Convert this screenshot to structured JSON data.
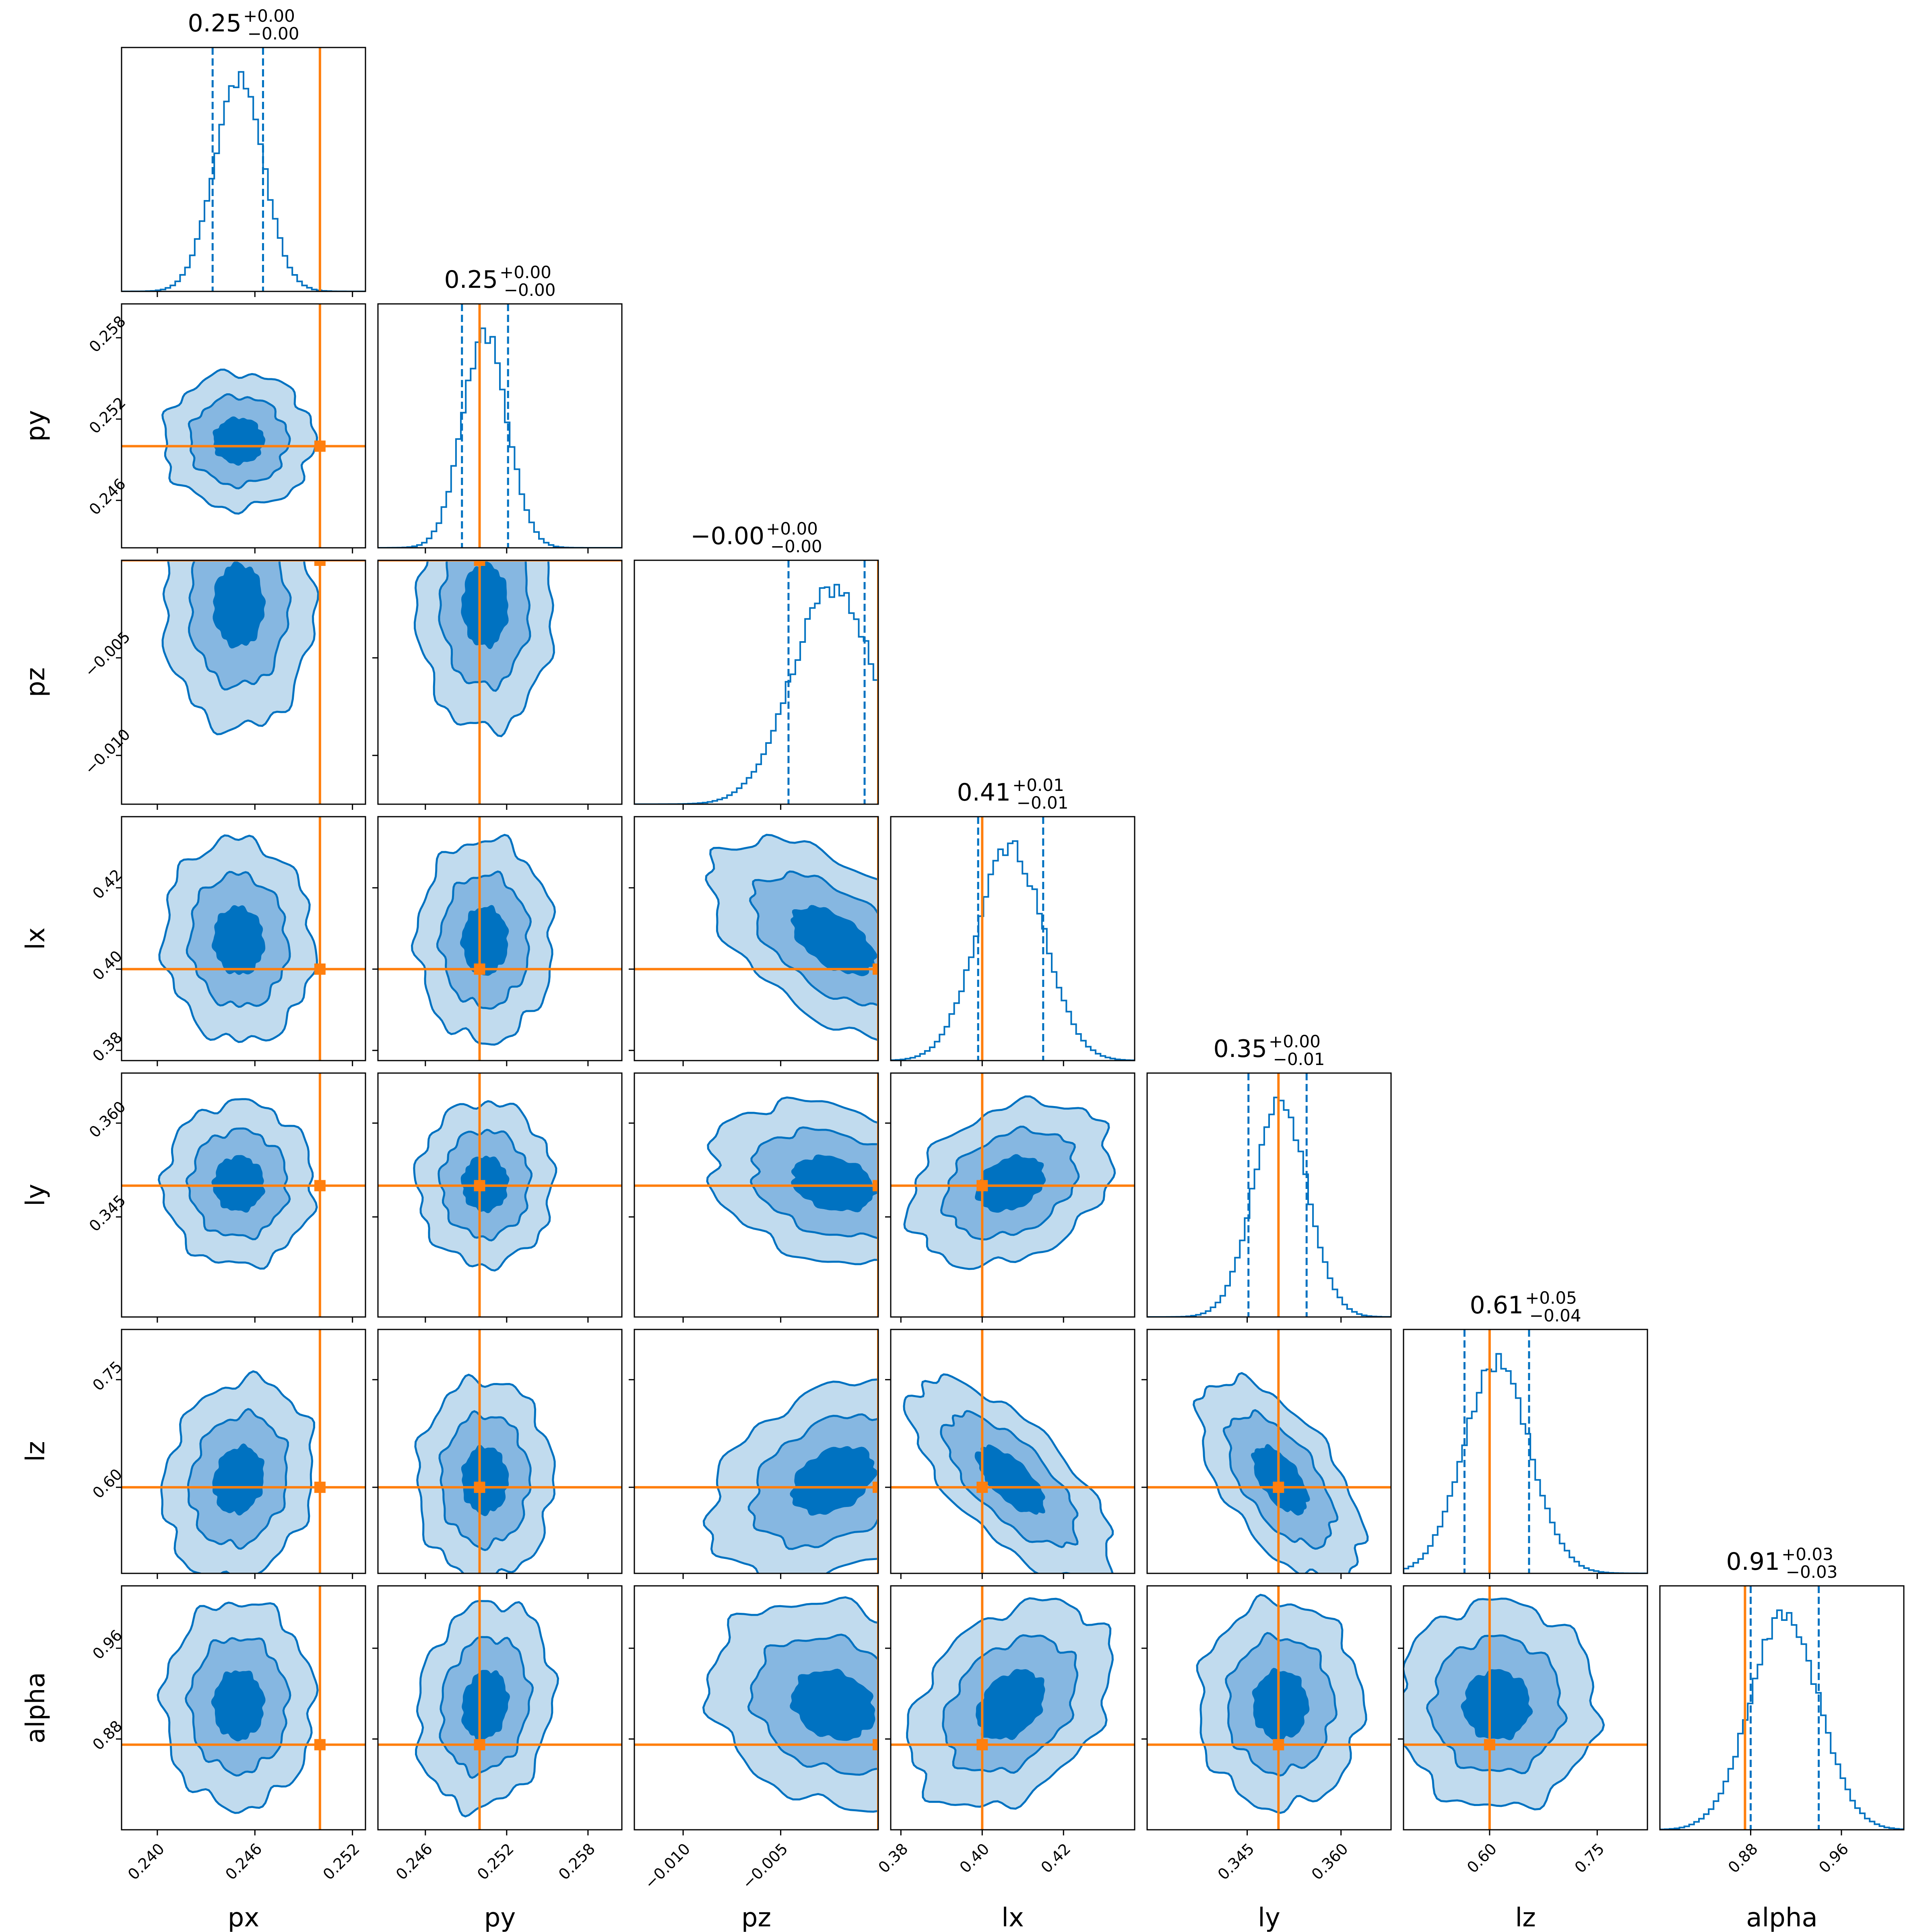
{
  "figure": {
    "type": "corner-plot"
  },
  "chart_data": {
    "type": "corner",
    "parameters": [
      {
        "name": "px",
        "label": "px",
        "title_value": "0.25",
        "title_plus": "+0.00",
        "title_minus": "−0.00",
        "truth": 0.25,
        "mean": 0.245,
        "sd": 0.00152,
        "q_lo": 0.2434,
        "q_hi": 0.2465,
        "range": [
          0.2378,
          0.2528
        ],
        "ticks": [
          {
            "v": 0.24,
            "t": "0.240"
          },
          {
            "v": 0.246,
            "t": "0.246"
          },
          {
            "v": 0.252,
            "t": "0.252"
          }
        ]
      },
      {
        "name": "py",
        "label": "py",
        "title_value": "0.25",
        "title_plus": "+0.00",
        "title_minus": "−0.00",
        "truth": 0.25,
        "mean": 0.2504,
        "sd": 0.00165,
        "q_lo": 0.2487,
        "q_hi": 0.2521,
        "range": [
          0.2425,
          0.2605
        ],
        "ticks": [
          {
            "v": 0.246,
            "t": "0.246"
          },
          {
            "v": 0.252,
            "t": "0.252"
          },
          {
            "v": 0.258,
            "t": "0.258"
          }
        ]
      },
      {
        "name": "pz",
        "label": "pz",
        "title_value": "−0.00",
        "title_plus": "+0.00",
        "title_minus": "−0.00",
        "truth": 0.0,
        "mean": -0.0023,
        "sd": 0.0021,
        "q_lo": -0.0046,
        "q_hi": -0.0007,
        "range": [
          -0.0125,
          0.0
        ],
        "ticks": [
          {
            "v": -0.01,
            "t": "−0.010"
          },
          {
            "v": -0.005,
            "t": "−0.005"
          }
        ]
      },
      {
        "name": "lx",
        "label": "lx",
        "title_value": "0.41",
        "title_plus": "+0.01",
        "title_minus": "−0.01",
        "truth": 0.4,
        "mean": 0.407,
        "sd": 0.0082,
        "q_lo": 0.399,
        "q_hi": 0.415,
        "range": [
          0.3775,
          0.4375
        ],
        "ticks": [
          {
            "v": 0.38,
            "t": "0.38"
          },
          {
            "v": 0.4,
            "t": "0.40"
          },
          {
            "v": 0.42,
            "t": "0.42"
          }
        ]
      },
      {
        "name": "ly",
        "label": "ly",
        "title_value": "0.35",
        "title_plus": "+0.00",
        "title_minus": "−0.01",
        "truth": 0.35,
        "mean": 0.3503,
        "sd": 0.0043,
        "q_lo": 0.3452,
        "q_hi": 0.3545,
        "range": [
          0.329,
          0.368
        ],
        "ticks": [
          {
            "v": 0.345,
            "t": "0.345"
          },
          {
            "v": 0.36,
            "t": "0.360"
          }
        ]
      },
      {
        "name": "lz",
        "label": "lz",
        "title_value": "0.61",
        "title_plus": "+0.05",
        "title_minus": "−0.04",
        "truth": 0.6,
        "mean": 0.61,
        "sd": 0.046,
        "q_lo": 0.565,
        "q_hi": 0.655,
        "range": [
          0.48,
          0.82
        ],
        "ticks": [
          {
            "v": 0.6,
            "t": "0.60"
          },
          {
            "v": 0.75,
            "t": "0.75"
          }
        ]
      },
      {
        "name": "alpha",
        "label": "alpha",
        "title_value": "0.91",
        "title_plus": "+0.03",
        "title_minus": "−0.03",
        "truth": 0.875,
        "mean": 0.91,
        "sd": 0.03,
        "q_lo": 0.88,
        "q_hi": 0.94,
        "range": [
          0.8,
          1.015
        ],
        "ticks": [
          {
            "v": 0.88,
            "t": "0.88"
          },
          {
            "v": 0.96,
            "t": "0.96"
          }
        ]
      }
    ],
    "correlations": [
      {
        "i": 1,
        "j": 0,
        "r": 0.0
      },
      {
        "i": 2,
        "j": 0,
        "r": 0.0
      },
      {
        "i": 2,
        "j": 1,
        "r": 0.0
      },
      {
        "i": 3,
        "j": 0,
        "r": -0.05
      },
      {
        "i": 3,
        "j": 1,
        "r": 0.0
      },
      {
        "i": 3,
        "j": 2,
        "r": -0.55
      },
      {
        "i": 4,
        "j": 0,
        "r": 0.0
      },
      {
        "i": 4,
        "j": 1,
        "r": 0.0
      },
      {
        "i": 4,
        "j": 2,
        "r": -0.25
      },
      {
        "i": 4,
        "j": 3,
        "r": 0.3
      },
      {
        "i": 5,
        "j": 0,
        "r": 0.15
      },
      {
        "i": 5,
        "j": 1,
        "r": 0.0
      },
      {
        "i": 5,
        "j": 2,
        "r": 0.35
      },
      {
        "i": 5,
        "j": 3,
        "r": -0.7
      },
      {
        "i": 5,
        "j": 4,
        "r": -0.6
      },
      {
        "i": 6,
        "j": 0,
        "r": 0.0
      },
      {
        "i": 6,
        "j": 1,
        "r": 0.15
      },
      {
        "i": 6,
        "j": 2,
        "r": -0.2
      },
      {
        "i": 6,
        "j": 3,
        "r": 0.35
      },
      {
        "i": 6,
        "j": 4,
        "r": 0.0
      },
      {
        "i": 6,
        "j": 5,
        "r": 0.0
      }
    ],
    "contour_levels": [
      0.39,
      0.86,
      0.99
    ],
    "colors": {
      "posterior": "#0072c1",
      "truth": "#ff7f0e",
      "contour_fills": [
        "#c1dbee",
        "#86b7e1",
        "#0072c1"
      ],
      "axes": "#000000"
    }
  }
}
